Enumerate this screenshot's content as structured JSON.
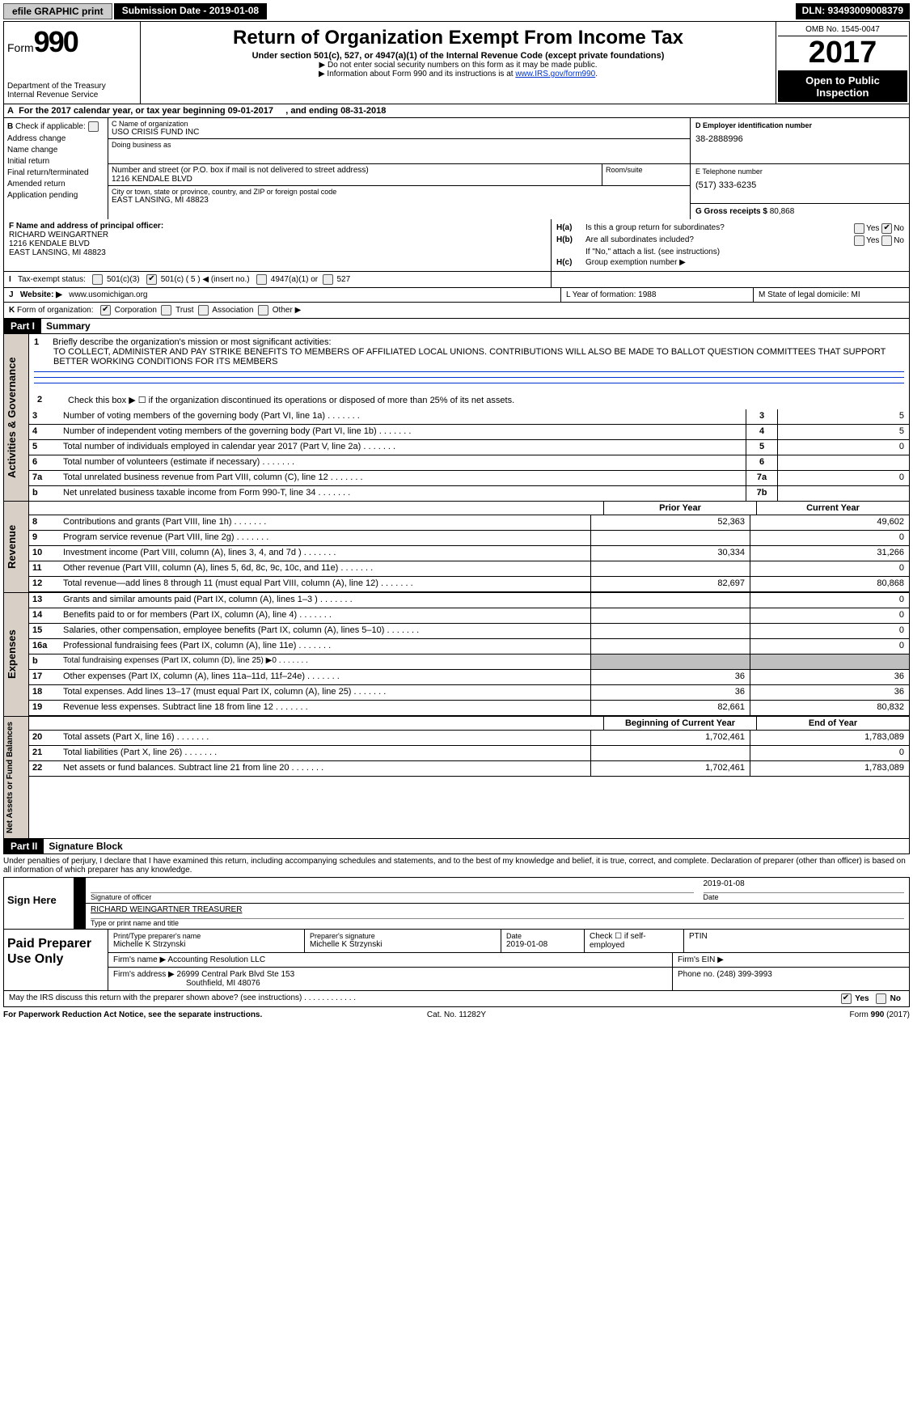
{
  "top": {
    "efile": "efile GRAPHIC print",
    "submission": "Submission Date - 2019-01-08",
    "dln": "DLN: 93493009008379"
  },
  "header": {
    "form_label": "Form",
    "form_number": "990",
    "dept": "Department of the Treasury",
    "irs": "Internal Revenue Service",
    "title": "Return of Organization Exempt From Income Tax",
    "sub1": "Under section 501(c), 527, or 4947(a)(1) of the Internal Revenue Code (except private foundations)",
    "sub2": "▶ Do not enter social security numbers on this form as it may be made public.",
    "sub3_pre": "▶ Information about Form 990 and its instructions is at ",
    "sub3_link": "www.IRS.gov/form990",
    "omb": "OMB No. 1545-0047",
    "year": "2017",
    "open": "Open to Public Inspection"
  },
  "row_a": {
    "prefix": "A",
    "text": "For the 2017 calendar year, or tax year beginning 09-01-2017",
    "mid": ", and ending 08-31-2018"
  },
  "b": {
    "label": "B",
    "check_label": "Check if applicable:",
    "items": [
      "Address change",
      "Name change",
      "Initial return",
      "Final return/terminated",
      "Amended return",
      "Application pending"
    ]
  },
  "c": {
    "name_label": "C Name of organization",
    "name": "USO CRISIS FUND INC",
    "dba_label": "Doing business as",
    "dba": "",
    "street_label": "Number and street (or P.O. box if mail is not delivered to street address)",
    "street": "1216 KENDALE BLVD",
    "room_label": "Room/suite",
    "city_label": "City or town, state or province, country, and ZIP or foreign postal code",
    "city": "EAST LANSING, MI  48823"
  },
  "de": {
    "d_label": "D Employer identification number",
    "d_val": "38-2888996",
    "e_label": "E Telephone number",
    "e_val": "(517) 333-6235",
    "g_label": "G Gross receipts $",
    "g_val": "80,868"
  },
  "f": {
    "label": "F  Name and address of principal officer:",
    "name": "RICHARD WEINGARTNER",
    "addr1": "1216 KENDALE BLVD",
    "addr2": "EAST LANSING, MI  48823"
  },
  "h": {
    "a_label": "H(a)",
    "a_text": "Is this a group return for subordinates?",
    "b_label": "H(b)",
    "b_text": "Are all subordinates included?",
    "b_note": "If \"No,\" attach a list. (see instructions)",
    "c_label": "H(c)",
    "c_text": "Group exemption number ▶",
    "yes": "Yes",
    "no": "No"
  },
  "i": {
    "label": "I",
    "text": "Tax-exempt status:",
    "o1": "501(c)(3)",
    "o2": "501(c) ( 5 ) ◀ (insert no.)",
    "o3": "4947(a)(1) or",
    "o4": "527"
  },
  "j": {
    "label": "J",
    "text": "Website: ▶",
    "val": "www.usomichigan.org"
  },
  "lm": {
    "l": "L Year of formation: 1988",
    "m": "M State of legal domicile: MI"
  },
  "k": {
    "label": "K",
    "text": "Form of organization:",
    "opts": [
      "Corporation",
      "Trust",
      "Association",
      "Other ▶"
    ]
  },
  "part1": {
    "header": "Part I",
    "title": "Summary"
  },
  "governance": {
    "vert": "Activities & Governance",
    "l1_pre": "Briefly describe the organization's mission or most significant activities:",
    "l1_text": "TO COLLECT, ADMINISTER AND PAY STRIKE BENEFITS TO MEMBERS OF AFFILIATED LOCAL UNIONS. CONTRIBUTIONS WILL ALSO BE MADE TO BALLOT QUESTION COMMITTEES THAT SUPPORT BETTER WORKING CONDITIONS FOR ITS MEMBERS",
    "l2": "Check this box ▶ ☐  if the organization discontinued its operations or disposed of more than 25% of its net assets.",
    "rows": [
      {
        "n": "3",
        "t": "Number of voting members of the governing body (Part VI, line 1a)",
        "box": "3",
        "val": "5"
      },
      {
        "n": "4",
        "t": "Number of independent voting members of the governing body (Part VI, line 1b)",
        "box": "4",
        "val": "5"
      },
      {
        "n": "5",
        "t": "Total number of individuals employed in calendar year 2017 (Part V, line 2a)",
        "box": "5",
        "val": "0"
      },
      {
        "n": "6",
        "t": "Total number of volunteers (estimate if necessary)",
        "box": "6",
        "val": ""
      },
      {
        "n": "7a",
        "t": "Total unrelated business revenue from Part VIII, column (C), line 12",
        "box": "7a",
        "val": "0"
      },
      {
        "n": "b",
        "t": "Net unrelated business taxable income from Form 990-T, line 34",
        "box": "7b",
        "val": ""
      }
    ]
  },
  "year_headers": {
    "prior": "Prior Year",
    "current": "Current Year"
  },
  "revenue": {
    "vert": "Revenue",
    "rows": [
      {
        "n": "8",
        "t": "Contributions and grants (Part VIII, line 1h)",
        "v1": "52,363",
        "v2": "49,602"
      },
      {
        "n": "9",
        "t": "Program service revenue (Part VIII, line 2g)",
        "v1": "",
        "v2": "0"
      },
      {
        "n": "10",
        "t": "Investment income (Part VIII, column (A), lines 3, 4, and 7d )",
        "v1": "30,334",
        "v2": "31,266"
      },
      {
        "n": "11",
        "t": "Other revenue (Part VIII, column (A), lines 5, 6d, 8c, 9c, 10c, and 11e)",
        "v1": "",
        "v2": "0"
      },
      {
        "n": "12",
        "t": "Total revenue—add lines 8 through 11 (must equal Part VIII, column (A), line 12)",
        "v1": "82,697",
        "v2": "80,868"
      }
    ]
  },
  "expenses": {
    "vert": "Expenses",
    "rows": [
      {
        "n": "13",
        "t": "Grants and similar amounts paid (Part IX, column (A), lines 1–3 )",
        "v1": "",
        "v2": "0"
      },
      {
        "n": "14",
        "t": "Benefits paid to or for members (Part IX, column (A), line 4)",
        "v1": "",
        "v2": "0"
      },
      {
        "n": "15",
        "t": "Salaries, other compensation, employee benefits (Part IX, column (A), lines 5–10)",
        "v1": "",
        "v2": "0"
      },
      {
        "n": "16a",
        "t": "Professional fundraising fees (Part IX, column (A), line 11e)",
        "v1": "",
        "v2": "0"
      },
      {
        "n": "b",
        "t": "Total fundraising expenses (Part IX, column (D), line 25) ▶0",
        "v1": "__SHADED__",
        "v2": "__SHADED__"
      },
      {
        "n": "17",
        "t": "Other expenses (Part IX, column (A), lines 11a–11d, 11f–24e)",
        "v1": "36",
        "v2": "36"
      },
      {
        "n": "18",
        "t": "Total expenses. Add lines 13–17 (must equal Part IX, column (A), line 25)",
        "v1": "36",
        "v2": "36"
      },
      {
        "n": "19",
        "t": "Revenue less expenses. Subtract line 18 from line 12",
        "v1": "82,661",
        "v2": "80,832"
      }
    ]
  },
  "netassets": {
    "vert": "Net Assets or Fund Balances",
    "header1": "Beginning of Current Year",
    "header2": "End of Year",
    "rows": [
      {
        "n": "20",
        "t": "Total assets (Part X, line 16)",
        "v1": "1,702,461",
        "v2": "1,783,089"
      },
      {
        "n": "21",
        "t": "Total liabilities (Part X, line 26)",
        "v1": "",
        "v2": "0"
      },
      {
        "n": "22",
        "t": "Net assets or fund balances. Subtract line 21 from line 20",
        "v1": "1,702,461",
        "v2": "1,783,089"
      }
    ]
  },
  "part2": {
    "header": "Part II",
    "title": "Signature Block"
  },
  "penalty": "Under penalties of perjury, I declare that I have examined this return, including accompanying schedules and statements, and to the best of my knowledge and belief, it is true, correct, and complete. Declaration of preparer (other than officer) is based on all information of which preparer has any knowledge.",
  "sign": {
    "here": "Sign Here",
    "sig_label": "Signature of officer",
    "date_label": "Date",
    "date_val": "2019-01-08",
    "name_val": "RICHARD WEINGARTNER  TREASURER",
    "name_label": "Type or print name and title"
  },
  "prep": {
    "label": "Paid Preparer Use Only",
    "name_label": "Print/Type preparer's name",
    "name_val": "Michelle K Strzynski",
    "sig_label": "Preparer's signature",
    "sig_val": "Michelle K Strzynski",
    "date_label": "Date",
    "date_val": "2019-01-08",
    "check_label": "Check ☐ if self-employed",
    "ptin_label": "PTIN",
    "firm_name_label": "Firm's name     ▶",
    "firm_name": "Accounting Resolution LLC",
    "firm_ein_label": "Firm's EIN ▶",
    "firm_addr_label": "Firm's address ▶",
    "firm_addr1": "26999 Central Park Blvd Ste 153",
    "firm_addr2": "Southfield, MI  48076",
    "phone_label": "Phone no. (248) 399-3993"
  },
  "discuss": {
    "q": "May the IRS discuss this return with the preparer shown above? (see instructions)   .    .    .    .    .    .    .    .    .    .    .    .",
    "yes": "Yes",
    "no": "No"
  },
  "footer": {
    "l": "For Paperwork Reduction Act Notice, see the separate instructions.",
    "c": "Cat. No. 11282Y",
    "r": "Form 990 (2017)"
  }
}
